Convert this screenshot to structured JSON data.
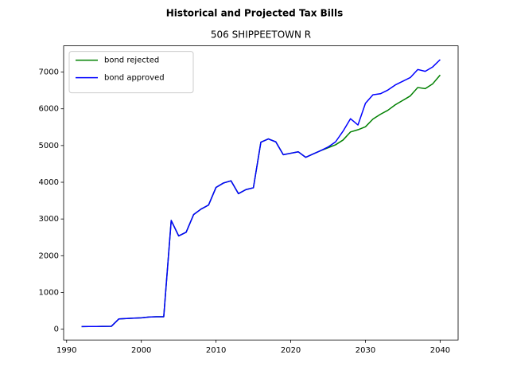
{
  "chart_data": {
    "type": "line",
    "title": "Historical and Projected Tax Bills",
    "subtitle": "506 SHIPPEETOWN R",
    "x": [
      1992,
      1993,
      1994,
      1995,
      1996,
      1997,
      1998,
      1999,
      2000,
      2001,
      2002,
      2003,
      2004,
      2005,
      2006,
      2007,
      2008,
      2009,
      2010,
      2011,
      2012,
      2013,
      2014,
      2015,
      2016,
      2017,
      2018,
      2019,
      2020,
      2021,
      2022,
      2023,
      2024,
      2025,
      2026,
      2027,
      2028,
      2029,
      2030,
      2031,
      2032,
      2033,
      2034,
      2035,
      2036,
      2037,
      2038,
      2039,
      2040
    ],
    "series": [
      {
        "name": "bond rejected",
        "color": "#008000",
        "values": [
          70,
          72,
          74,
          76,
          80,
          280,
          290,
          300,
          310,
          330,
          340,
          340,
          2960,
          2540,
          2640,
          3120,
          3270,
          3380,
          3860,
          3980,
          4040,
          3690,
          3800,
          3850,
          5090,
          5180,
          5100,
          4750,
          4790,
          4830,
          4680,
          4770,
          4860,
          4940,
          5020,
          5150,
          5370,
          5430,
          5510,
          5720,
          5850,
          5960,
          6110,
          6230,
          6350,
          6580,
          6550,
          6680,
          6920
        ]
      },
      {
        "name": "bond approved",
        "color": "#0000ff",
        "values": [
          70,
          72,
          74,
          76,
          80,
          280,
          290,
          300,
          310,
          330,
          340,
          340,
          2960,
          2540,
          2640,
          3120,
          3270,
          3380,
          3860,
          3980,
          4040,
          3690,
          3800,
          3850,
          5090,
          5180,
          5100,
          4750,
          4790,
          4830,
          4680,
          4770,
          4860,
          4960,
          5100,
          5390,
          5730,
          5560,
          6150,
          6380,
          6410,
          6510,
          6650,
          6750,
          6850,
          7070,
          7020,
          7140,
          7340
        ]
      }
    ],
    "xlim": [
      1989.6,
      2042.4
    ],
    "xticks": [
      1990,
      2000,
      2010,
      2020,
      2030,
      2040
    ],
    "ylim": [
      -294,
      7714
    ],
    "yticks": [
      0,
      1000,
      2000,
      3000,
      4000,
      5000,
      6000,
      7000
    ],
    "legend": "upper left"
  }
}
